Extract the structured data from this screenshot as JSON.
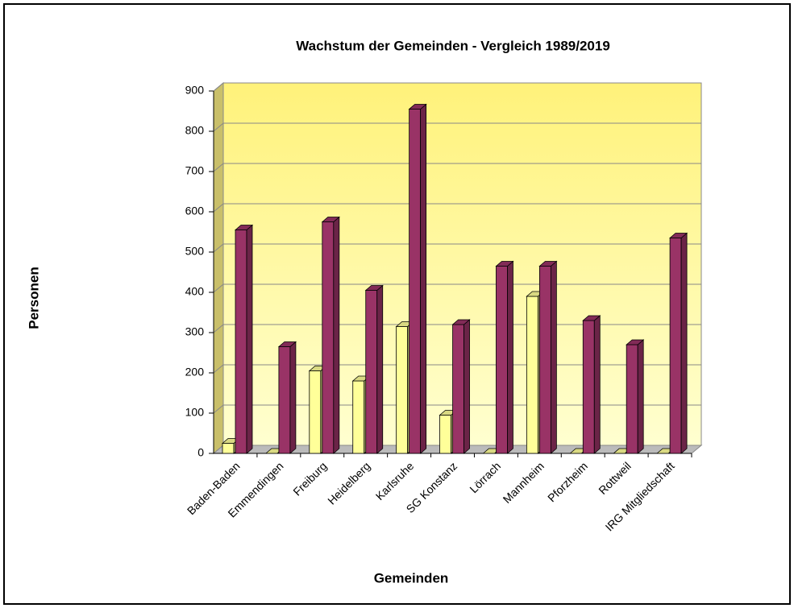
{
  "chart_data": {
    "type": "bar3d",
    "title": "Wachstum der Gemeinden - Vergleich 1989/2019",
    "x_label": "Gemeinden",
    "y_label": "Personen",
    "categories": [
      "Baden-Baden",
      "Emmendingen",
      "Freiburg",
      "Heidelberg",
      "Karlsruhe",
      "SG Konstanz",
      "Lörrach",
      "Mannheim",
      "Pforzheim",
      "Rottweil",
      "IRG Mitgliedschaft"
    ],
    "series": [
      {
        "color": "#ffff99",
        "values": [
          25,
          0,
          205,
          180,
          315,
          95,
          0,
          390,
          0,
          0,
          0
        ]
      },
      {
        "color": "#993366",
        "values": [
          555,
          265,
          575,
          405,
          855,
          320,
          465,
          465,
          330,
          270,
          535
        ]
      }
    ],
    "ylim": [
      0,
      900
    ],
    "yticks": [
      0,
      100,
      200,
      300,
      400,
      500,
      600,
      700,
      800,
      900
    ],
    "grid": true
  }
}
